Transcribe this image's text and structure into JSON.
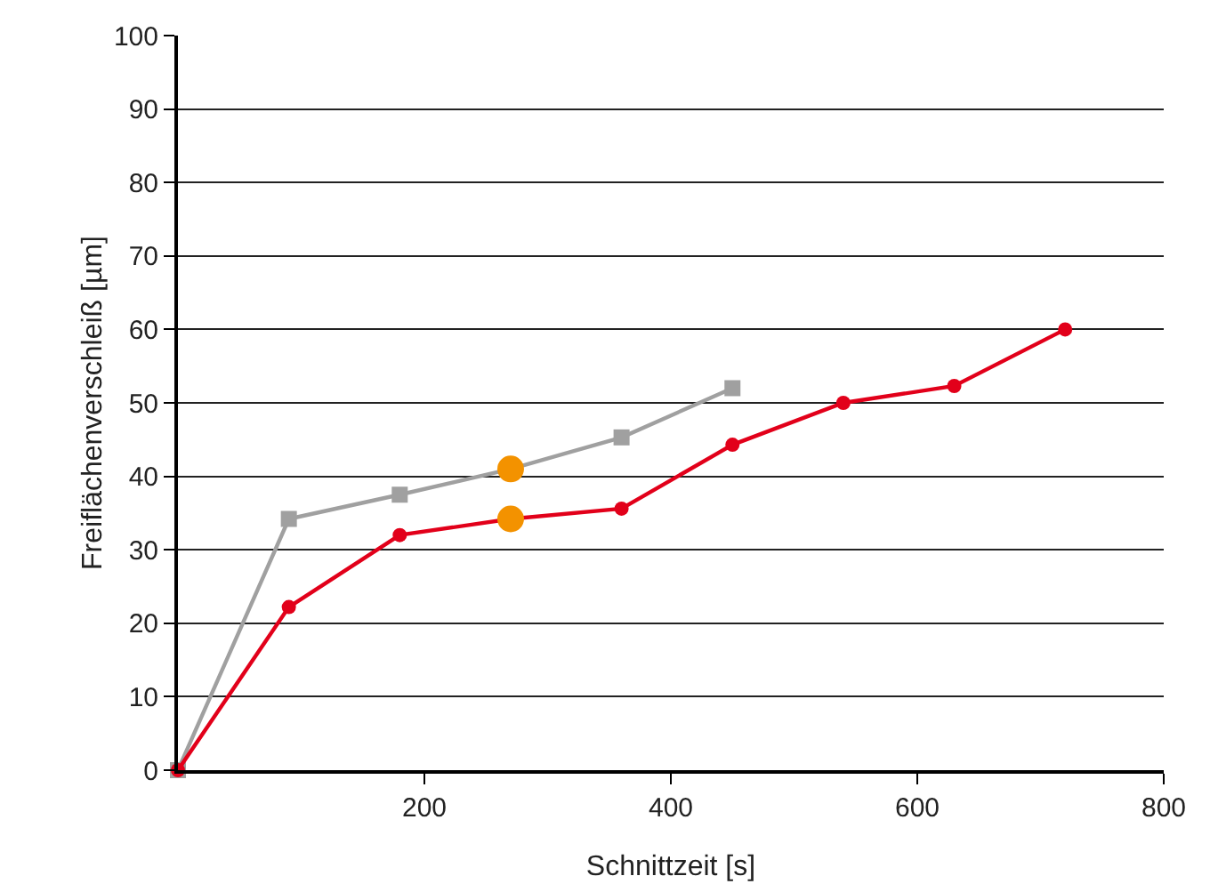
{
  "chart_data": {
    "type": "line",
    "xlabel": "Schnittzeit [s]",
    "ylabel": "Freiflächenverschleiß [µm]",
    "xlim": [
      0,
      800
    ],
    "xticks": [
      200,
      400,
      600,
      800
    ],
    "ylim": [
      0,
      100
    ],
    "yticks": [
      0,
      10,
      20,
      30,
      40,
      50,
      60,
      70,
      80,
      90,
      100
    ],
    "grid": "y",
    "legend": false,
    "line_style": "solid",
    "series": [
      {
        "color": "#a0a0a0",
        "marker": "square",
        "x": [
          0,
          90,
          180,
          270,
          360,
          450
        ],
        "values": [
          0,
          34.2,
          37.5,
          41,
          45.3,
          52
        ]
      },
      {
        "color": "#e2001a",
        "marker": "circle",
        "x": [
          0,
          90,
          180,
          270,
          360,
          450,
          540,
          630,
          720
        ],
        "values": [
          0,
          22.2,
          32,
          34.2,
          35.6,
          44.3,
          50,
          52.3,
          60
        ]
      },
      {
        "type": "scatter",
        "color": "#f39200",
        "marker": "circle",
        "x": [
          270,
          270
        ],
        "values": [
          41,
          34.2
        ]
      }
    ]
  }
}
